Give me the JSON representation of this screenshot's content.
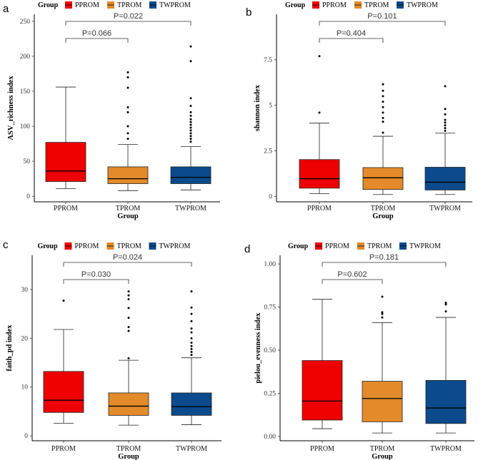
{
  "chart_data": [
    {
      "type": "box",
      "panel": "a",
      "ylabel": "ASV_richness index",
      "xlabel": "Group",
      "ylim": [
        -8,
        260
      ],
      "yticks": [
        0,
        50,
        100,
        150,
        200,
        250
      ],
      "legend": {
        "title": "Group",
        "position": "top",
        "entries": [
          "PPROM",
          "TPROM",
          "TWPROM"
        ]
      },
      "categories": [
        "PPROM",
        "TPROM",
        "TWPROM"
      ],
      "colors": [
        "#EE0000",
        "#E38A2A",
        "#0B4A8C"
      ],
      "boxes": [
        {
          "min": 11,
          "q1": 21,
          "median": 36,
          "q3": 77,
          "max": 156,
          "outliers": []
        },
        {
          "min": 8,
          "q1": 18,
          "median": 25,
          "q3": 42,
          "max": 74,
          "outliers": [
            82,
            90,
            100,
            120,
            127,
            155,
            170,
            177
          ]
        },
        {
          "min": 9,
          "q1": 18,
          "median": 27,
          "q3": 42,
          "max": 71,
          "outliers": [
            78,
            82,
            86,
            90,
            94,
            98,
            102,
            106,
            110,
            115,
            120,
            129,
            140,
            193,
            214
          ]
        }
      ],
      "comparisons": [
        {
          "label": "P=0.066",
          "from": 0,
          "to": 1
        },
        {
          "label": "P=0.022",
          "from": 0,
          "to": 2
        }
      ]
    },
    {
      "type": "box",
      "panel": "b",
      "ylabel": "shannon index",
      "xlabel": "Group",
      "ylim": [
        -0.3,
        10.0
      ],
      "yticks": [
        0.0,
        2.5,
        5.0,
        7.5
      ],
      "legend": {
        "title": "Group",
        "position": "top",
        "entries": [
          "PPROM",
          "TPROM",
          "TWPROM"
        ]
      },
      "categories": [
        "PPROM",
        "TPROM",
        "TWPROM"
      ],
      "colors": [
        "#EE0000",
        "#E38A2A",
        "#0B4A8C"
      ],
      "boxes": [
        {
          "min": 0.15,
          "q1": 0.45,
          "median": 0.97,
          "q3": 2.02,
          "max": 4.02,
          "outliers": [
            4.6,
            7.7
          ]
        },
        {
          "min": 0.1,
          "q1": 0.38,
          "median": 1.02,
          "q3": 1.58,
          "max": 3.3,
          "outliers": [
            3.5,
            4.1,
            4.3,
            4.6,
            4.9,
            5.2,
            5.5,
            5.8,
            6.15
          ]
        },
        {
          "min": 0.1,
          "q1": 0.35,
          "median": 0.78,
          "q3": 1.6,
          "max": 3.47,
          "outliers": [
            3.6,
            3.75,
            3.9,
            4.05,
            4.2,
            4.5,
            4.8,
            6.05
          ]
        }
      ],
      "comparisons": [
        {
          "label": "P=0.404",
          "from": 0,
          "to": 1
        },
        {
          "label": "P=0.101",
          "from": 0,
          "to": 2
        }
      ]
    },
    {
      "type": "box",
      "panel": "c",
      "ylabel": "faith_pd index",
      "xlabel": "Group",
      "ylim": [
        -1,
        37
      ],
      "yticks": [
        0,
        10,
        20,
        30
      ],
      "legend": {
        "title": "Group",
        "position": "top",
        "entries": [
          "PPROM",
          "TPROM",
          "TWPROM"
        ]
      },
      "categories": [
        "PPROM",
        "TPROM",
        "TWPROM"
      ],
      "colors": [
        "#EE0000",
        "#E38A2A",
        "#0B4A8C"
      ],
      "boxes": [
        {
          "min": 2.6,
          "q1": 4.8,
          "median": 7.3,
          "q3": 13.2,
          "max": 21.8,
          "outliers": [
            27.7
          ]
        },
        {
          "min": 2.2,
          "q1": 4.2,
          "median": 6.1,
          "q3": 8.8,
          "max": 15.5,
          "outliers": [
            15.9,
            21.5,
            22.3,
            24.2,
            26.2,
            28.0,
            28.8,
            29.6
          ]
        },
        {
          "min": 2.3,
          "q1": 4.2,
          "median": 6.0,
          "q3": 8.8,
          "max": 16.0,
          "outliers": [
            16.6,
            17.2,
            17.8,
            18.4,
            19.1,
            20.0,
            21.2,
            22.0,
            23.5,
            25.0,
            26.3,
            29.6
          ]
        }
      ],
      "comparisons": [
        {
          "label": "P=0.030",
          "from": 0,
          "to": 1
        },
        {
          "label": "P=0.024",
          "from": 0,
          "to": 2
        }
      ]
    },
    {
      "type": "box",
      "panel": "d",
      "ylabel": "pielou_evenness index",
      "xlabel": "Group",
      "ylim": [
        -0.025,
        1.05
      ],
      "yticks": [
        0.0,
        0.25,
        0.5,
        0.75,
        1.0
      ],
      "ytick_labels": [
        "0.00",
        "0.25",
        "0.50",
        "0.75",
        "1.00"
      ],
      "legend": {
        "title": "Group",
        "position": "top",
        "entries": [
          "PPROM",
          "TPROM",
          "TWPROM"
        ]
      },
      "categories": [
        "PPROM",
        "TPROM",
        "TWPROM"
      ],
      "colors": [
        "#EE0000",
        "#E38A2A",
        "#0B4A8C"
      ],
      "boxes": [
        {
          "min": 0.045,
          "q1": 0.095,
          "median": 0.205,
          "q3": 0.44,
          "max": 0.795,
          "outliers": []
        },
        {
          "min": 0.02,
          "q1": 0.085,
          "median": 0.22,
          "q3": 0.32,
          "max": 0.66,
          "outliers": [
            0.69,
            0.71,
            0.72,
            0.81
          ]
        },
        {
          "min": 0.02,
          "q1": 0.075,
          "median": 0.165,
          "q3": 0.325,
          "max": 0.69,
          "outliers": [
            0.725,
            0.765,
            0.775
          ]
        }
      ],
      "comparisons": [
        {
          "label": "P=0.602",
          "from": 0,
          "to": 1
        },
        {
          "label": "P=0.181",
          "from": 0,
          "to": 2
        }
      ]
    }
  ]
}
